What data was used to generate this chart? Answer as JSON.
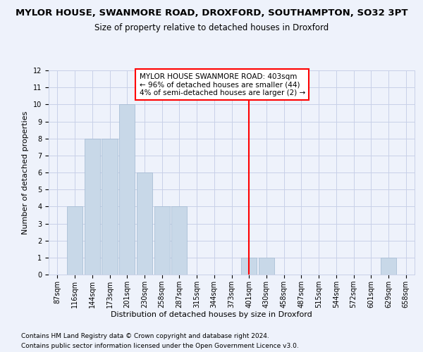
{
  "title": "MYLOR HOUSE, SWANMORE ROAD, DROXFORD, SOUTHAMPTON, SO32 3PT",
  "subtitle": "Size of property relative to detached houses in Droxford",
  "xlabel": "Distribution of detached houses by size in Droxford",
  "ylabel": "Number of detached properties",
  "footer1": "Contains HM Land Registry data © Crown copyright and database right 2024.",
  "footer2": "Contains public sector information licensed under the Open Government Licence v3.0.",
  "bins": [
    "87sqm",
    "116sqm",
    "144sqm",
    "173sqm",
    "201sqm",
    "230sqm",
    "258sqm",
    "287sqm",
    "315sqm",
    "344sqm",
    "373sqm",
    "401sqm",
    "430sqm",
    "458sqm",
    "487sqm",
    "515sqm",
    "544sqm",
    "572sqm",
    "601sqm",
    "629sqm",
    "658sqm"
  ],
  "heights": [
    0,
    4,
    8,
    8,
    10,
    6,
    4,
    4,
    0,
    0,
    0,
    1,
    1,
    0,
    0,
    0,
    0,
    0,
    0,
    1,
    0
  ],
  "bar_color": "#c8d8e8",
  "bar_edge_color": "#a0b8d0",
  "vline_color": "red",
  "annotation_text": "MYLOR HOUSE SWANMORE ROAD: 403sqm\n← 96% of detached houses are smaller (44)\n4% of semi-detached houses are larger (2) →",
  "annotation_box_color": "white",
  "annotation_box_edge": "red",
  "ylim": [
    0,
    12
  ],
  "yticks": [
    0,
    1,
    2,
    3,
    4,
    5,
    6,
    7,
    8,
    9,
    10,
    11,
    12
  ],
  "background_color": "#eef2fb",
  "grid_color": "#c8d0e8",
  "title_fontsize": 9.5,
  "subtitle_fontsize": 8.5,
  "xlabel_fontsize": 8,
  "ylabel_fontsize": 8,
  "tick_fontsize": 7,
  "footer_fontsize": 6.5,
  "annot_fontsize": 7.5
}
